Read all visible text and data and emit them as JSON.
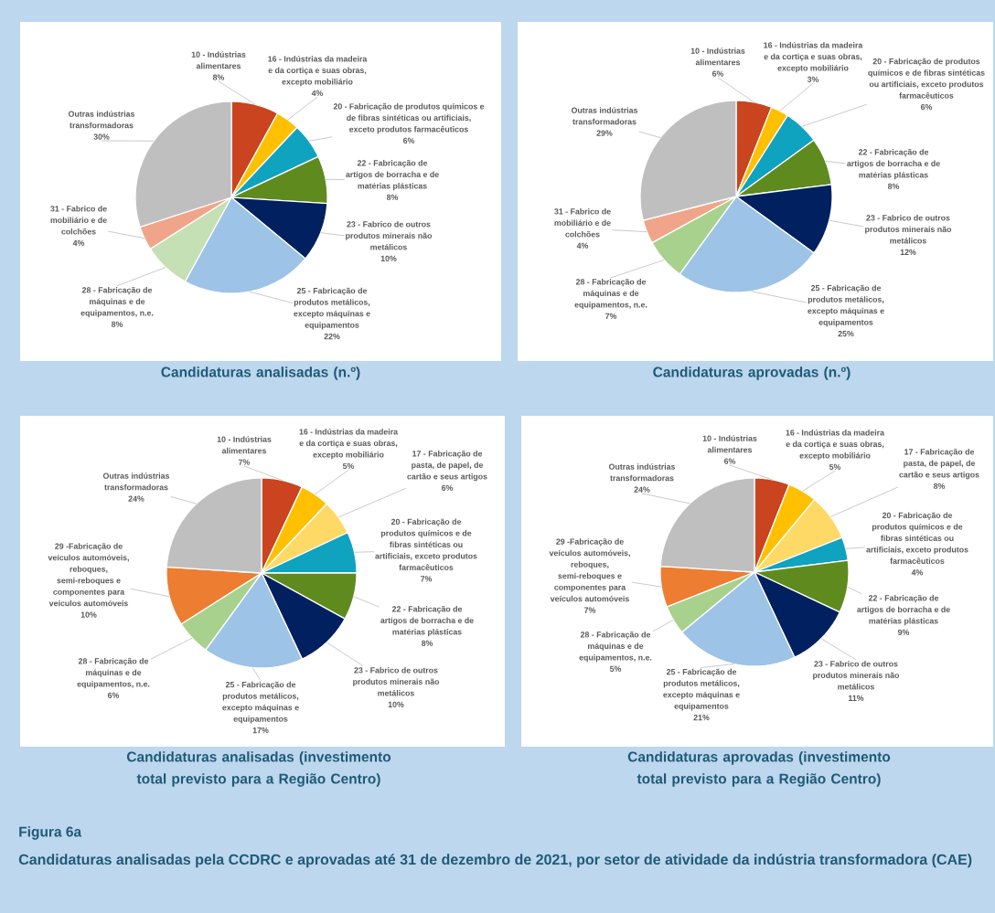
{
  "chart_data": [
    {
      "type": "pie",
      "title": "Candidaturas analisadas (n.º)",
      "categories": [
        "10 - Indústrias alimentares",
        "16 - Indústrias da madeira e da cortiça e suas obras, excepto mobiliário",
        "20 - Fabricação de produtos químicos e de fibras sintéticas ou artificiais, exceto produtos farmacêuticos",
        "22 - Fabricação de artigos de borracha e de matérias plásticas",
        "23 - Fabrico de outros produtos minerais não metálicos",
        "25 - Fabricação de produtos metálicos, excepto máquinas e equipamentos",
        "28 - Fabricação de máquinas e de equipamentos, n.e.",
        "31 - Fabrico de mobiliário e de colchões",
        "Outras indústrias transformadoras"
      ],
      "values": [
        8,
        4,
        6,
        8,
        10,
        22,
        8,
        4,
        30
      ],
      "value_labels": [
        "8%",
        "4%",
        "6%",
        "8%",
        "10%",
        "22%",
        "8%",
        "4%",
        "30%"
      ],
      "colors": [
        "#c9441f",
        "#ffc000",
        "#0fa3c0",
        "#5f8b1e",
        "#002060",
        "#9dc3e6",
        "#c5e0b4",
        "#f0a58a",
        "#bfbfbf"
      ]
    },
    {
      "type": "pie",
      "title": "Candidaturas aprovadas (n.º)",
      "categories": [
        "10 - Indústrias alimentares",
        "16 - Indústrias da madeira e da cortiça e suas obras, excepto mobiliário",
        "20 - Fabricação de produtos químicos e de fibras sintéticas ou artificiais, exceto produtos farmacêuticos",
        "22 - Fabricação de artigos de borracha e de matérias plásticas",
        "23 - Fabrico de outros produtos minerais não metálicos",
        "25 - Fabricação de produtos metálicos, excepto máquinas e equipamentos",
        "28 - Fabricação de máquinas e de equipamentos, n.e.",
        "31 - Fabrico de mobiliário e de colchões",
        "Outras indústrias transformadoras"
      ],
      "values": [
        6,
        3,
        6,
        8,
        12,
        25,
        7,
        4,
        29
      ],
      "value_labels": [
        "6%",
        "3%",
        "6%",
        "8%",
        "12%",
        "25%",
        "7%",
        "4%",
        "29%"
      ],
      "colors": [
        "#c9441f",
        "#ffc000",
        "#0fa3c0",
        "#5f8b1e",
        "#002060",
        "#9dc3e6",
        "#a9d18e",
        "#f0a58a",
        "#bfbfbf"
      ]
    },
    {
      "type": "pie",
      "title": "Candidaturas analisadas (investimento total previsto para a Região Centro)",
      "categories": [
        "10 - Indústrias alimentares",
        "16 - Indústrias da madeira e da cortiça e suas obras, excepto mobiliário",
        "17 - Fabricação de pasta, de papel, de cartão e seus artigos",
        "20 - Fabricação de produtos químicos e de fibras sintéticas ou artificiais, exceto produtos farmacêuticos",
        "22 - Fabricação de artigos de borracha e de matérias plásticas",
        "23 - Fabrico de outros produtos minerais não metálicos",
        "25 - Fabricação de produtos metálicos, excepto máquinas e equipamentos",
        "28 - Fabricação de máquinas e de equipamentos, n.e.",
        "29 -Fabricação de veículos automóveis, reboques, semi-reboques e componentes para veículos automóveis",
        "Outras indústrias transformadoras"
      ],
      "values": [
        7,
        5,
        6,
        7,
        8,
        10,
        17,
        6,
        10,
        24
      ],
      "value_labels": [
        "7%",
        "5%",
        "6%",
        "7%",
        "8%",
        "10%",
        "17%",
        "6%",
        "10%",
        "24%"
      ],
      "colors": [
        "#c9441f",
        "#ffc000",
        "#ffd966",
        "#0fa3c0",
        "#5f8b1e",
        "#002060",
        "#9dc3e6",
        "#a9d18e",
        "#ed7d31",
        "#bfbfbf"
      ]
    },
    {
      "type": "pie",
      "title": "Candidaturas aprovadas (investimento total previsto para a Região Centro)",
      "categories": [
        "10 - Indústrias alimentares",
        "16 - Indústrias da madeira e da cortiça e suas obras, excepto mobiliário",
        "17 - Fabricação de pasta, de papel, de cartão e seus artigos",
        "20 - Fabricação de produtos químicos e de fibras sintéticas ou artificiais, exceto produtos farmacêuticos",
        "22 - Fabricação de artigos de borracha e de matérias plásticas",
        "23 - Fabrico de outros produtos minerais não metálicos",
        "25 - Fabricação de produtos metálicos, excepto máquinas e equipamentos",
        "28 - Fabricação de máquinas e de equipamentos, n.e.",
        "29 -Fabricação de veículos automóveis, reboques, semi-reboques e componentes para veículos automóveis",
        "Outras indústrias transformadoras"
      ],
      "values": [
        6,
        5,
        8,
        4,
        9,
        11,
        21,
        5,
        7,
        24
      ],
      "value_labels": [
        "6%",
        "5%",
        "8%",
        "4%",
        "9%",
        "11%",
        "21%",
        "5%",
        "7%",
        "24%"
      ],
      "colors": [
        "#c9441f",
        "#ffc000",
        "#ffd966",
        "#0fa3c0",
        "#5f8b1e",
        "#002060",
        "#9dc3e6",
        "#a9d18e",
        "#ed7d31",
        "#bfbfbf"
      ],
      "annotations": [
        "Figura 6a",
        "Candidaturas analisadas pela CCDRC e aprovadas até 31 de dezembro de 2021, por setor de atividade da indústria transformadora (CAE)"
      ]
    }
  ]
}
